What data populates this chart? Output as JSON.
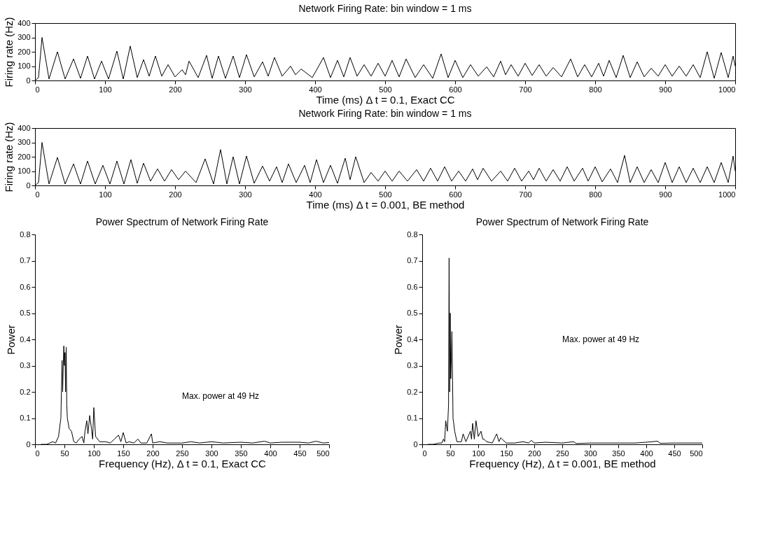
{
  "chart_data": [
    {
      "type": "line",
      "title": "Network Firing Rate: bin window = 1 ms",
      "xlabel": "Time (ms)  Δ t = 0.1, Exact CC",
      "ylabel": "Firing rate (Hz)",
      "xlim": [
        0,
        1000
      ],
      "ylim": [
        0,
        400
      ],
      "xticks": [
        0,
        100,
        200,
        300,
        400,
        500,
        600,
        700,
        800,
        900,
        1000
      ],
      "yticks": [
        0,
        100,
        200,
        300,
        400
      ],
      "series": [
        {
          "color": "#000000",
          "x": [
            0,
            5,
            10,
            20,
            32,
            43,
            55,
            65,
            75,
            85,
            95,
            105,
            117,
            126,
            136,
            146,
            155,
            163,
            172,
            181,
            190,
            200,
            210,
            215,
            220,
            233,
            245,
            253,
            262,
            272,
            283,
            292,
            302,
            313,
            325,
            333,
            342,
            353,
            365,
            372,
            380,
            396,
            412,
            422,
            432,
            441,
            450,
            460,
            470,
            480,
            490,
            500,
            510,
            520,
            530,
            543,
            555,
            568,
            580,
            590,
            600,
            611,
            622,
            633,
            645,
            655,
            665,
            672,
            680,
            690,
            700,
            710,
            720,
            730,
            740,
            752,
            765,
            775,
            785,
            795,
            805,
            812,
            820,
            830,
            840,
            850,
            860,
            870,
            880,
            890,
            900,
            910,
            920,
            930,
            940,
            950,
            960,
            970,
            980,
            990,
            997,
            1000
          ],
          "values": [
            0,
            20,
            300,
            10,
            200,
            10,
            150,
            15,
            170,
            10,
            135,
            10,
            205,
            10,
            240,
            20,
            145,
            30,
            170,
            30,
            110,
            25,
            75,
            40,
            135,
            20,
            175,
            15,
            170,
            15,
            170,
            20,
            180,
            25,
            130,
            30,
            160,
            30,
            100,
            40,
            80,
            20,
            160,
            20,
            140,
            25,
            160,
            30,
            110,
            30,
            120,
            30,
            140,
            25,
            150,
            20,
            110,
            15,
            185,
            20,
            140,
            20,
            110,
            30,
            95,
            25,
            135,
            40,
            110,
            30,
            120,
            35,
            110,
            30,
            90,
            25,
            150,
            25,
            110,
            25,
            120,
            30,
            140,
            20,
            175,
            20,
            130,
            25,
            85,
            30,
            110,
            30,
            100,
            30,
            110,
            20,
            200,
            15,
            195,
            20,
            170,
            100
          ]
        }
      ]
    },
    {
      "type": "line",
      "title": "Network Firing Rate: bin window = 1 ms",
      "xlabel": "Time (ms)  Δ t = 0.001, BE method",
      "ylabel": "Firing rate (Hz)",
      "xlim": [
        0,
        1000
      ],
      "ylim": [
        0,
        400
      ],
      "xticks": [
        0,
        100,
        200,
        300,
        400,
        500,
        600,
        700,
        800,
        900,
        1000
      ],
      "yticks": [
        0,
        100,
        200,
        300,
        400
      ],
      "series": [
        {
          "color": "#000000",
          "x": [
            0,
            5,
            10,
            20,
            32,
            43,
            55,
            65,
            75,
            86,
            97,
            107,
            117,
            127,
            137,
            146,
            155,
            165,
            175,
            185,
            195,
            205,
            215,
            230,
            243,
            255,
            265,
            274,
            283,
            292,
            302,
            313,
            325,
            335,
            345,
            353,
            362,
            373,
            385,
            393,
            402,
            412,
            422,
            432,
            443,
            450,
            458,
            470,
            480,
            490,
            500,
            510,
            520,
            532,
            545,
            555,
            565,
            575,
            585,
            595,
            605,
            615,
            625,
            632,
            640,
            652,
            665,
            675,
            685,
            695,
            705,
            712,
            720,
            730,
            740,
            750,
            760,
            770,
            782,
            790,
            800,
            810,
            822,
            832,
            842,
            850,
            860,
            870,
            880,
            890,
            900,
            910,
            920,
            930,
            940,
            950,
            960,
            970,
            980,
            990,
            997,
            1000
          ],
          "values": [
            0,
            20,
            300,
            10,
            195,
            10,
            150,
            10,
            170,
            10,
            140,
            10,
            170,
            10,
            180,
            15,
            155,
            30,
            115,
            30,
            110,
            40,
            100,
            20,
            185,
            10,
            250,
            10,
            200,
            10,
            205,
            15,
            135,
            30,
            130,
            20,
            150,
            20,
            140,
            20,
            180,
            20,
            140,
            15,
            190,
            40,
            200,
            20,
            90,
            30,
            100,
            30,
            100,
            30,
            110,
            30,
            120,
            30,
            130,
            30,
            100,
            30,
            115,
            40,
            120,
            30,
            100,
            30,
            120,
            30,
            100,
            40,
            120,
            30,
            110,
            30,
            130,
            30,
            120,
            30,
            130,
            25,
            115,
            20,
            210,
            20,
            130,
            20,
            110,
            20,
            160,
            20,
            130,
            20,
            120,
            20,
            130,
            20,
            160,
            20,
            205,
            100
          ]
        }
      ]
    },
    {
      "type": "line",
      "title": "Power Spectrum of Network Firing Rate",
      "xlabel": "Frequency (Hz), Δ t = 0.1, Exact CC",
      "ylabel": "Power",
      "annotations": [
        "Max. power at 49 Hz"
      ],
      "xlim": [
        0,
        500
      ],
      "ylim": [
        0,
        0.8
      ],
      "xticks": [
        0,
        50,
        100,
        150,
        200,
        250,
        300,
        350,
        400,
        450,
        500
      ],
      "yticks": [
        0,
        0.1,
        0.2,
        0.3,
        0.4,
        0.5,
        0.6,
        0.7,
        0.8
      ],
      "series": [
        {
          "color": "#000000",
          "x": [
            10,
            20,
            30,
            35,
            40,
            44,
            46,
            47,
            48,
            49,
            50,
            51,
            52,
            53,
            54,
            55,
            58,
            62,
            66,
            70,
            75,
            80,
            83,
            85,
            88,
            90,
            93,
            96,
            98,
            100,
            103,
            110,
            120,
            128,
            135,
            142,
            146,
            150,
            155,
            160,
            168,
            175,
            180,
            190,
            198,
            200,
            212,
            225,
            250,
            265,
            280,
            300,
            320,
            350,
            370,
            390,
            400,
            420,
            450,
            465,
            478,
            490,
            500
          ],
          "values": [
            0,
            0,
            0.01,
            0.005,
            0.03,
            0.1,
            0.32,
            0.2,
            0.3,
            0.375,
            0.3,
            0.35,
            0.2,
            0.37,
            0.15,
            0.1,
            0.06,
            0.05,
            0.01,
            0.005,
            0.02,
            0.03,
            0.005,
            0.05,
            0.09,
            0.04,
            0.11,
            0.06,
            0.02,
            0.14,
            0.03,
            0.01,
            0.01,
            0.005,
            0.02,
            0.035,
            0.01,
            0.045,
            0.005,
            0.01,
            0.005,
            0.02,
            0.005,
            0.005,
            0.04,
            0.005,
            0.01,
            0.005,
            0.005,
            0.01,
            0.005,
            0.01,
            0.005,
            0.008,
            0.005,
            0.012,
            0.005,
            0.008,
            0.008,
            0.005,
            0.012,
            0.005,
            0.007
          ]
        }
      ]
    },
    {
      "type": "line",
      "title": "Power Spectrum of Network Firing Rate",
      "xlabel": "Frequency (Hz), Δ t = 0.001, BE method",
      "ylabel": "Power",
      "annotations": [
        "Max. power at 49 Hz"
      ],
      "xlim": [
        0,
        500
      ],
      "ylim": [
        0,
        0.8
      ],
      "xticks": [
        0,
        50,
        100,
        150,
        200,
        250,
        300,
        350,
        400,
        450,
        500
      ],
      "yticks": [
        0,
        0.1,
        0.2,
        0.3,
        0.4,
        0.5,
        0.6,
        0.7,
        0.8
      ],
      "series": [
        {
          "color": "#000000",
          "x": [
            10,
            20,
            30,
            35,
            38,
            40,
            42,
            45,
            47,
            48,
            49,
            50,
            51,
            52,
            53,
            54,
            55,
            58,
            62,
            70,
            73,
            78,
            86,
            88,
            90,
            93,
            96,
            100,
            105,
            108,
            110,
            115,
            125,
            133,
            137,
            140,
            150,
            165,
            180,
            190,
            195,
            200,
            220,
            250,
            270,
            275,
            300,
            320,
            350,
            380,
            400,
            420,
            425,
            450,
            470,
            500
          ],
          "values": [
            0,
            0,
            0.005,
            0.005,
            0.02,
            0.01,
            0.09,
            0.05,
            0.15,
            0.71,
            0.2,
            0.5,
            0.25,
            0.33,
            0.43,
            0.28,
            0.1,
            0.05,
            0.01,
            0.01,
            0.04,
            0.01,
            0.05,
            0.02,
            0.08,
            0.02,
            0.09,
            0.03,
            0.05,
            0.02,
            0.02,
            0.01,
            0.005,
            0.04,
            0.01,
            0.025,
            0.005,
            0.005,
            0.01,
            0.005,
            0.015,
            0.005,
            0.008,
            0.005,
            0.01,
            0.003,
            0.005,
            0.005,
            0.005,
            0.005,
            0.008,
            0.012,
            0.004,
            0.005,
            0.005,
            0.005
          ]
        }
      ]
    }
  ]
}
